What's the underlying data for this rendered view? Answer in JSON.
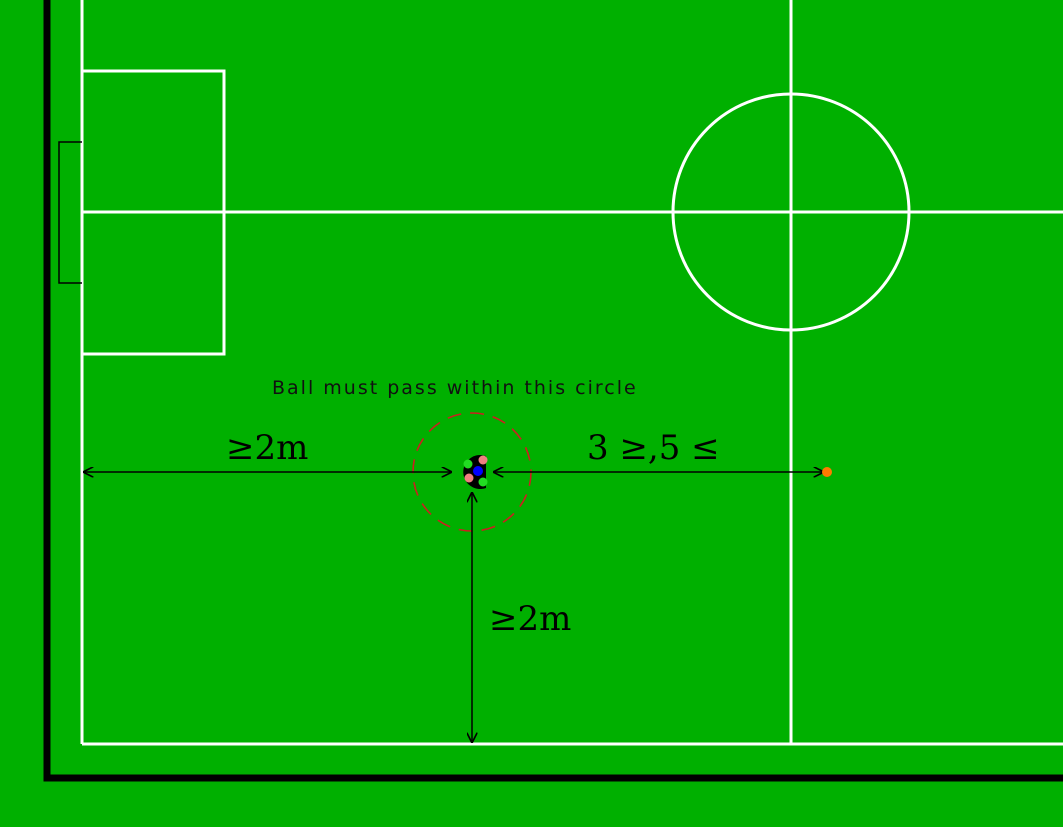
{
  "labels": {
    "caption": "Ball must pass within this circle",
    "left_distance": "≥2m",
    "bottom_distance": "≥2m",
    "right_distance": "3 ≥,5 ≤"
  },
  "colors": {
    "field": "#00b000",
    "lines": "#ffffff",
    "border": "#000000",
    "target_circle": "#cc1f1f",
    "ball": "#ff7a00",
    "robot_body": "#000000",
    "robot_center": "#0000ff",
    "marker_green": "#22dd22",
    "marker_pink": "#f08080"
  },
  "icons": {
    "robot": "robot-top-view-icon",
    "ball": "ball-icon"
  }
}
